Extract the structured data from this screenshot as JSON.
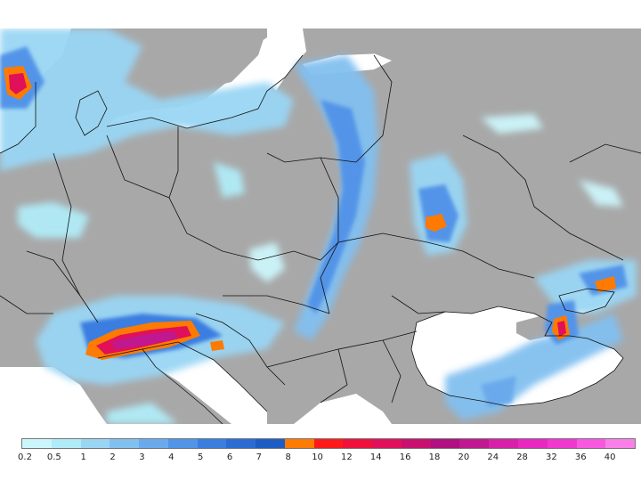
{
  "map": {
    "land_color": "#a8a8a8",
    "sea_color": "#ffffff",
    "border_color": "#111111"
  },
  "legend": {
    "labels": [
      "0.2",
      "0.5",
      "1",
      "2",
      "3",
      "4",
      "5",
      "6",
      "7",
      "8",
      "10",
      "12",
      "14",
      "16",
      "18",
      "20",
      "24",
      "28",
      "32",
      "36",
      "40"
    ],
    "colors": [
      "#ccf6fb",
      "#b0ecf8",
      "#9ad6f4",
      "#82c0f0",
      "#6aaaec",
      "#5294e8",
      "#3a7ee0",
      "#2a6cd4",
      "#1d5cc4",
      "#ff7a00",
      "#ff1a1a",
      "#f0103c",
      "#e0105a",
      "#c8106e",
      "#b01080",
      "#c01890",
      "#d820a8",
      "#e828c0",
      "#f038d0",
      "#f858e0",
      "#f880e8"
    ]
  }
}
